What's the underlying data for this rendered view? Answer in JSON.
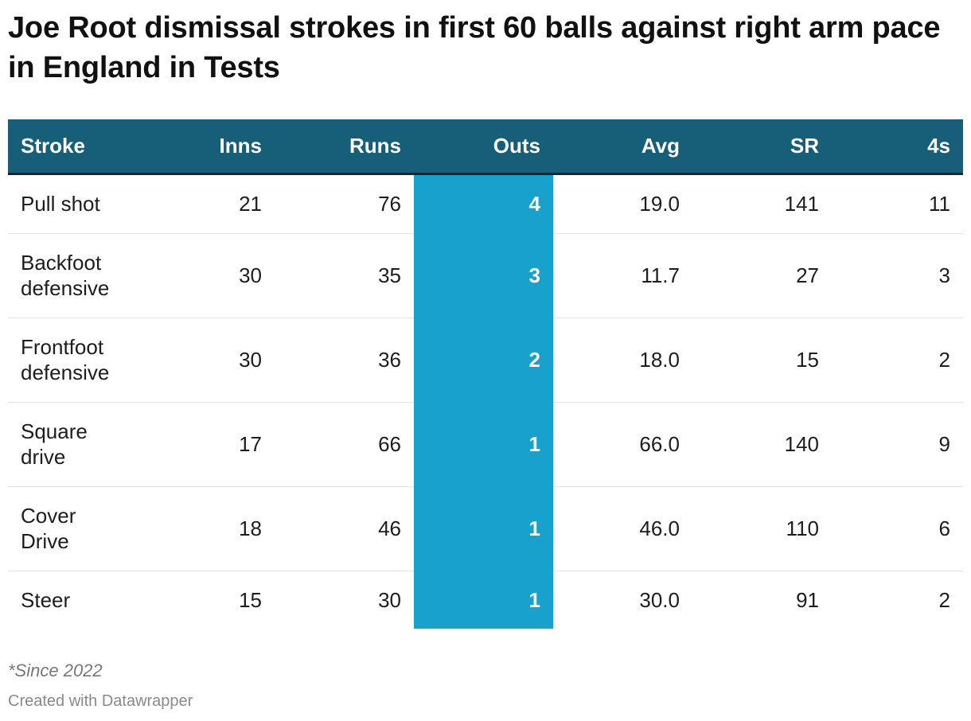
{
  "title": "Joe Root dismissal strokes in first 60 balls against right arm pace in England in Tests",
  "chart_data": {
    "type": "table",
    "title": "Joe Root dismissal strokes in first 60 balls against right arm pace in England in Tests",
    "columns": [
      "Stroke",
      "Inns",
      "Runs",
      "Outs",
      "Avg",
      "SR",
      "4s"
    ],
    "highlight_column": "Outs",
    "rows": [
      {
        "stroke": "Pull shot",
        "inns": "21",
        "runs": "76",
        "outs": "4",
        "avg": "19.0",
        "sr": "141",
        "fours": "11"
      },
      {
        "stroke": "Backfoot defensive",
        "inns": "30",
        "runs": "35",
        "outs": "3",
        "avg": "11.7",
        "sr": "27",
        "fours": "3"
      },
      {
        "stroke": "Frontfoot defensive",
        "inns": "30",
        "runs": "36",
        "outs": "2",
        "avg": "18.0",
        "sr": "15",
        "fours": "2"
      },
      {
        "stroke": "Square drive",
        "inns": "17",
        "runs": "66",
        "outs": "1",
        "avg": "66.0",
        "sr": "140",
        "fours": "9"
      },
      {
        "stroke": "Cover Drive",
        "inns": "18",
        "runs": "46",
        "outs": "1",
        "avg": "46.0",
        "sr": "110",
        "fours": "6"
      },
      {
        "stroke": "Steer",
        "inns": "15",
        "runs": "30",
        "outs": "1",
        "avg": "30.0",
        "sr": "91",
        "fours": "2"
      }
    ]
  },
  "colors": {
    "header_bg": "#175e78",
    "highlight": "#18a1cd",
    "text": "#1d1d1d"
  },
  "footer": {
    "note": "*Since 2022",
    "credit": "Created with Datawrapper"
  }
}
